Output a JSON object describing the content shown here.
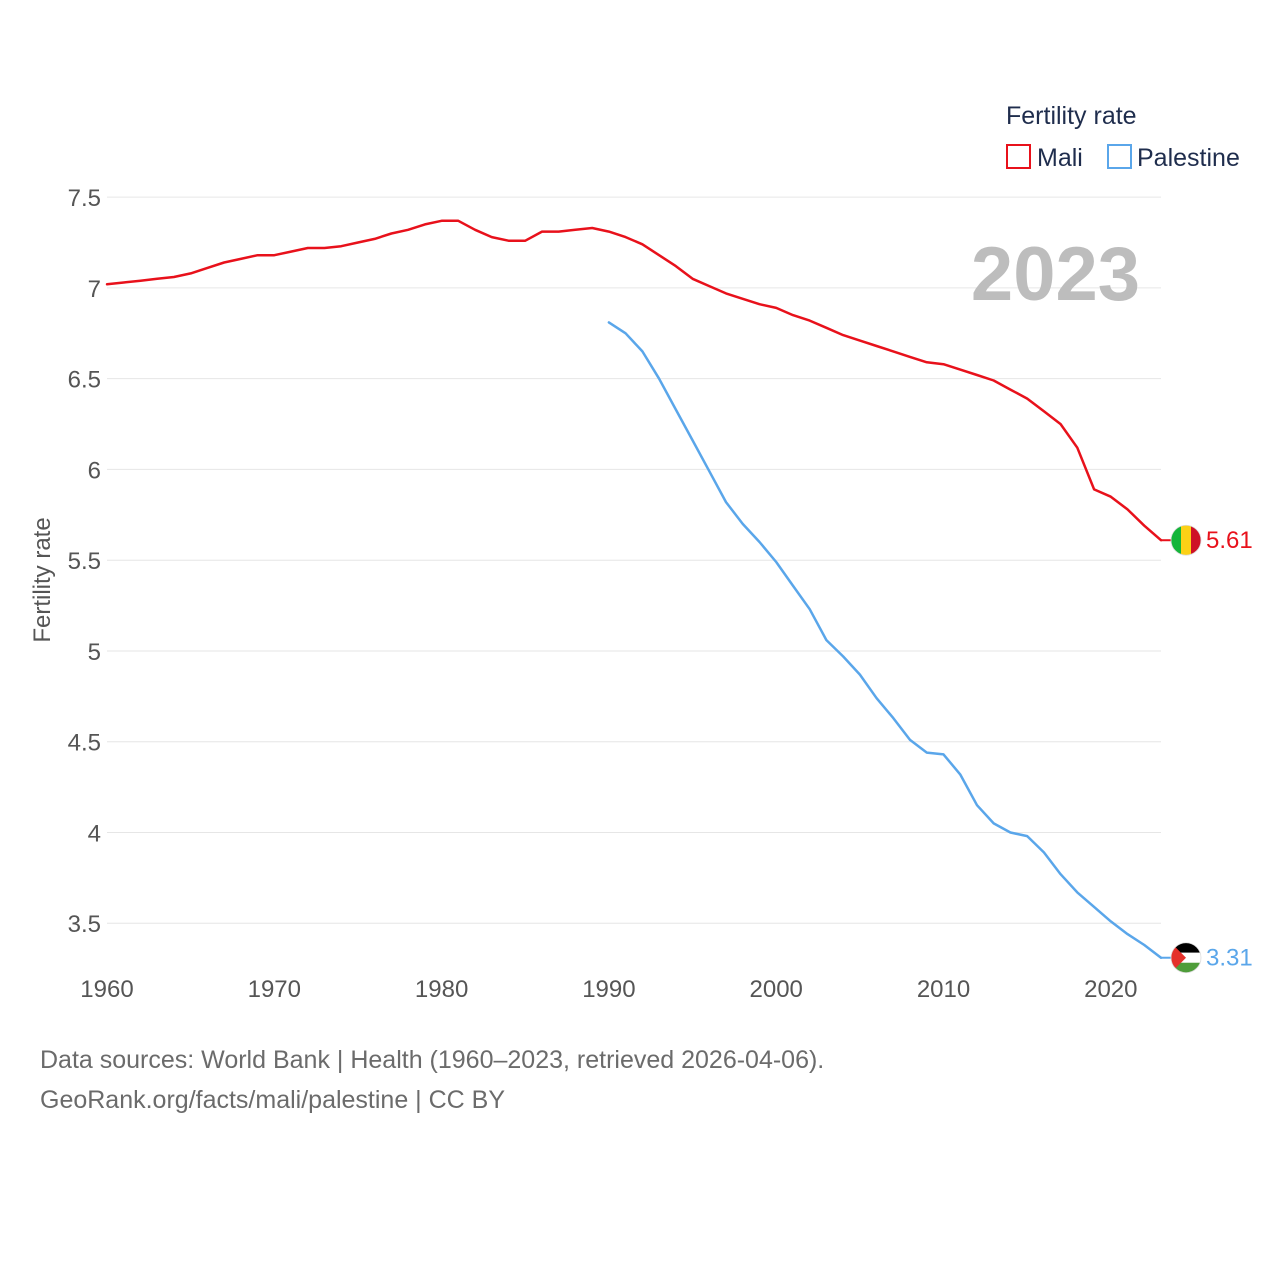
{
  "chart_data": {
    "type": "line",
    "legend_title": "Fertility rate",
    "ylabel": "Fertility rate",
    "xlabel": "",
    "year_label": "2023",
    "xlim": [
      1960,
      2023
    ],
    "ylim": [
      3.0,
      7.6
    ],
    "x_ticks": [
      1960,
      1970,
      1980,
      1990,
      2000,
      2010,
      2020
    ],
    "y_ticks": [
      3.5,
      4,
      4.5,
      5,
      5.5,
      6,
      6.5,
      7,
      7.5
    ],
    "y_tick_labels": [
      "3.5",
      "4",
      "4.5",
      "5",
      "5.5",
      "6",
      "6.5",
      "7",
      "7.5"
    ],
    "series": [
      {
        "name": "Mali",
        "color": "#e8111b",
        "flag": "mali-flag",
        "end_label": "5.61",
        "x": [
          1960,
          1961,
          1962,
          1963,
          1964,
          1965,
          1966,
          1967,
          1968,
          1969,
          1970,
          1971,
          1972,
          1973,
          1974,
          1975,
          1976,
          1977,
          1978,
          1979,
          1980,
          1981,
          1982,
          1983,
          1984,
          1985,
          1986,
          1987,
          1988,
          1989,
          1990,
          1991,
          1992,
          1993,
          1994,
          1995,
          1996,
          1997,
          1998,
          1999,
          2000,
          2001,
          2002,
          2003,
          2004,
          2005,
          2006,
          2007,
          2008,
          2009,
          2010,
          2011,
          2012,
          2013,
          2014,
          2015,
          2016,
          2017,
          2018,
          2019,
          2020,
          2021,
          2022,
          2023
        ],
        "values": [
          7.02,
          7.03,
          7.04,
          7.05,
          7.06,
          7.08,
          7.11,
          7.14,
          7.16,
          7.18,
          7.18,
          7.2,
          7.22,
          7.22,
          7.23,
          7.25,
          7.27,
          7.3,
          7.32,
          7.35,
          7.37,
          7.37,
          7.32,
          7.28,
          7.26,
          7.26,
          7.31,
          7.31,
          7.32,
          7.33,
          7.31,
          7.28,
          7.24,
          7.18,
          7.12,
          7.05,
          7.01,
          6.97,
          6.94,
          6.91,
          6.89,
          6.85,
          6.82,
          6.78,
          6.74,
          6.71,
          6.68,
          6.65,
          6.62,
          6.59,
          6.58,
          6.55,
          6.52,
          6.49,
          6.44,
          6.39,
          6.32,
          6.25,
          6.12,
          5.89,
          5.85,
          5.78,
          5.69,
          5.61
        ]
      },
      {
        "name": "Palestine",
        "color": "#5aa6ea",
        "flag": "palestine-flag",
        "end_label": "3.31",
        "x": [
          1990,
          1991,
          1992,
          1993,
          1994,
          1995,
          1996,
          1997,
          1998,
          1999,
          2000,
          2001,
          2002,
          2003,
          2004,
          2005,
          2006,
          2007,
          2008,
          2009,
          2010,
          2011,
          2012,
          2013,
          2014,
          2015,
          2016,
          2017,
          2018,
          2019,
          2020,
          2021,
          2022,
          2023
        ],
        "values": [
          6.81,
          6.75,
          6.65,
          6.5,
          6.33,
          6.16,
          5.99,
          5.82,
          5.7,
          5.6,
          5.49,
          5.36,
          5.23,
          5.06,
          4.97,
          4.87,
          4.74,
          4.63,
          4.51,
          4.44,
          4.43,
          4.32,
          4.15,
          4.05,
          4.0,
          3.98,
          3.89,
          3.77,
          3.67,
          3.59,
          3.51,
          3.44,
          3.38,
          3.31
        ]
      }
    ]
  },
  "footer": {
    "line1": "Data sources: World Bank | Health (1960–2023, retrieved 2026-04-06).",
    "line2": "GeoRank.org/facts/mali/palestine | CC BY"
  }
}
